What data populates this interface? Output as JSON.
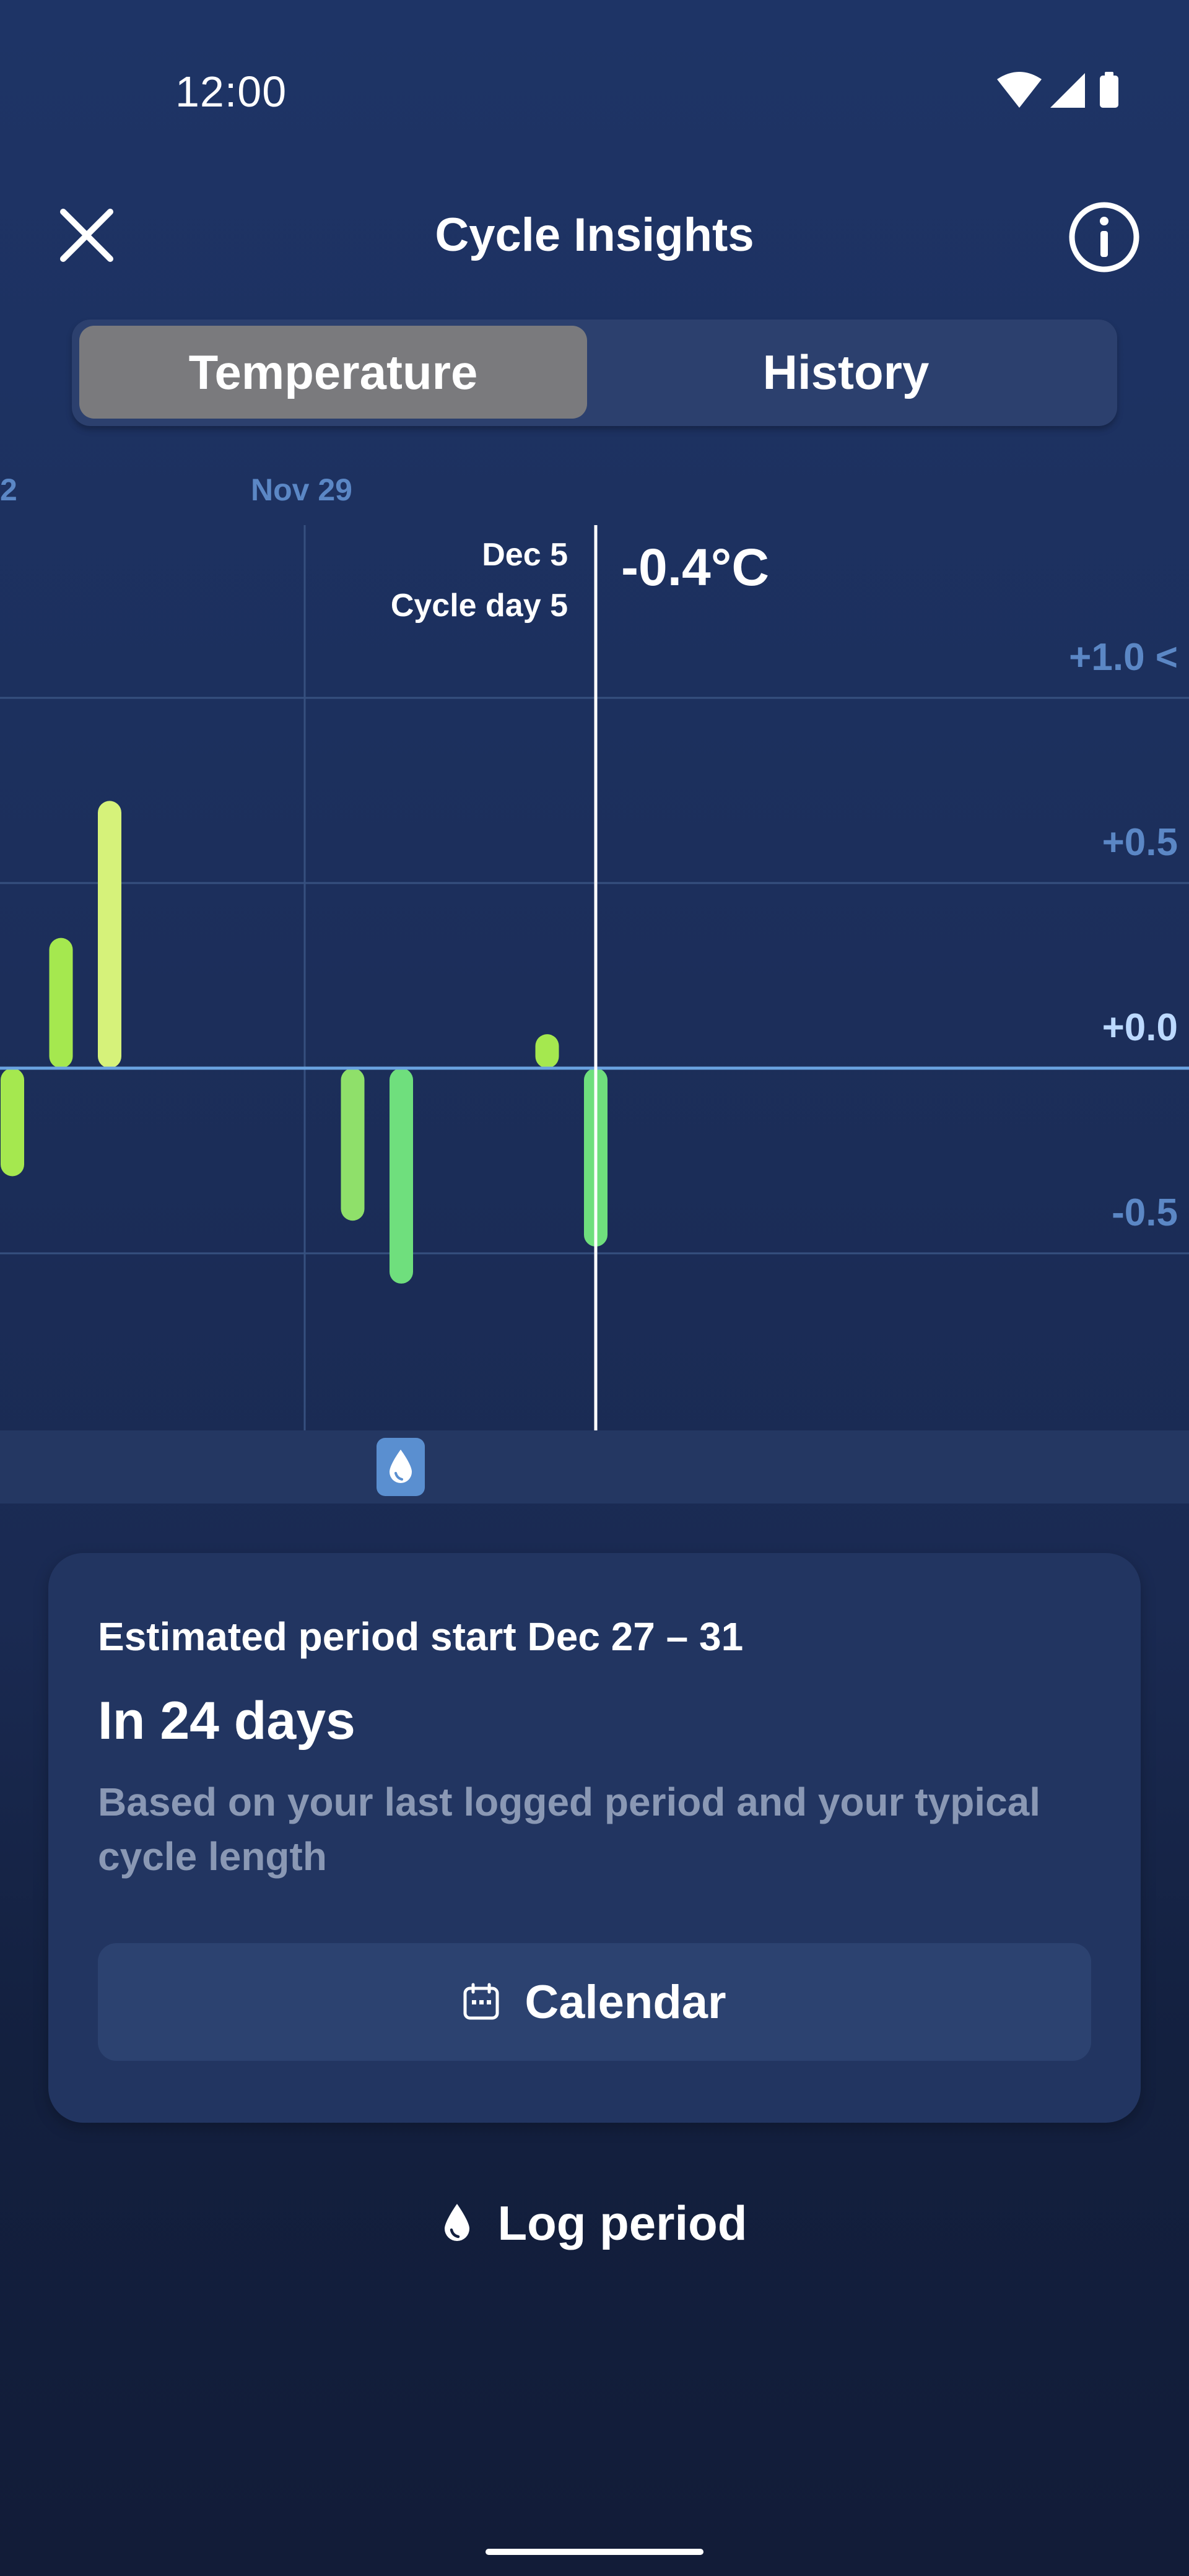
{
  "status_bar": {
    "time": "12:00",
    "icons": [
      "wifi-icon",
      "cellular-signal-icon",
      "battery-icon"
    ]
  },
  "header": {
    "title": "Cycle Insights",
    "close_icon": "close-icon",
    "info_icon": "info-icon"
  },
  "tabs": [
    {
      "label": "Temperature",
      "active": true
    },
    {
      "label": "History",
      "active": false
    }
  ],
  "chart_data": {
    "type": "bar",
    "x_labels": [
      "2",
      "Nov 29"
    ],
    "selected": {
      "date": "Dec 5",
      "cycle_day": "Cycle day 5",
      "value_label": "-0.4°C"
    },
    "y_tick_labels": [
      "+1.0 <",
      "+0.5",
      "+0.0",
      "-0.5"
    ],
    "ylim": [
      -0.98,
      1.42
    ],
    "grid": true,
    "bars": [
      {
        "value": -0.26,
        "color": "#a5e84f"
      },
      {
        "value": 0.32,
        "color": "#a5e84f"
      },
      {
        "value": 0.69,
        "color": "#d6f27a"
      },
      {
        "value": null
      },
      {
        "value": null
      },
      {
        "value": null
      },
      {
        "value": null
      },
      {
        "value": -0.38,
        "color": "#8fe06a"
      },
      {
        "value": -0.55,
        "color": "#6fdf7d"
      },
      {
        "value": null
      },
      {
        "value": null
      },
      {
        "value": 0.06,
        "color": "#a5e84f"
      },
      {
        "value": -0.45,
        "color": "#6fdf7d"
      }
    ],
    "colors": {
      "bar_light": "#d6f27a",
      "bar_mid": "#a5e84f",
      "bar_green": "#6fdf7d",
      "baseline": "#6aa3e0",
      "grid": "#36507f",
      "selection_line": "#ffffff"
    }
  },
  "period_marker_icon": "drop-icon",
  "card": {
    "subtitle": "Estimated period start Dec 27 – 31",
    "title": "In 24 days",
    "description": "Based on your last logged period and your typical cycle length",
    "calendar_button": "Calendar",
    "calendar_icon": "calendar-icon"
  },
  "log_period": {
    "label": "Log period",
    "icon": "drop-icon"
  }
}
